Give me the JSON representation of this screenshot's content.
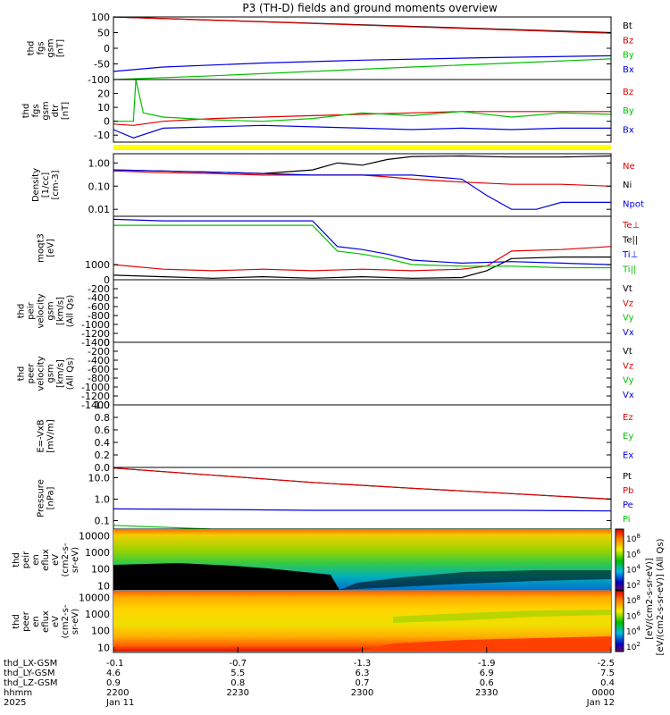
{
  "title": "P3 (TH-D) fields and ground moments overview",
  "chart_data": [
    {
      "type": "line",
      "ylabel": [
        "thd",
        "fgs",
        "gsm",
        "[nT]"
      ],
      "ylim": [
        -100,
        100
      ],
      "yticks": [
        "100",
        "50",
        "0",
        "-50",
        "-100"
      ],
      "ytick_values": [
        100,
        50,
        0,
        -50,
        -100
      ],
      "series": [
        {
          "name": "Bt",
          "color": "#000000",
          "x": [
            0,
            1
          ],
          "y": [
            118,
            50
          ]
        },
        {
          "name": "Bz",
          "color": "#e00000",
          "x": [
            0,
            1
          ],
          "y": [
            116,
            48
          ]
        },
        {
          "name": "By",
          "color": "#00c000",
          "x": [
            0,
            0.2,
            0.4,
            0.6,
            0.8,
            1
          ],
          "y": [
            -102,
            -88,
            -74,
            -60,
            -47,
            -34
          ]
        },
        {
          "name": "Bx",
          "color": "#0000e0",
          "x": [
            0,
            0.1,
            0.3,
            0.5,
            0.75,
            1
          ],
          "y": [
            -74,
            -60,
            -47,
            -38,
            -30,
            -24
          ]
        }
      ]
    },
    {
      "type": "line",
      "ylabel": [
        "thd",
        "fgs",
        "gsm",
        "dtr",
        "[nT]"
      ],
      "ylim": [
        -15,
        30
      ],
      "yticks": [
        "20",
        "10",
        "0",
        "-10"
      ],
      "ytick_values": [
        20,
        10,
        0,
        -10
      ],
      "series": [
        {
          "name": "Bz",
          "color": "#e00000",
          "x": [
            0,
            0.04,
            0.1,
            0.2,
            0.3,
            0.4,
            0.5,
            0.6,
            0.7,
            0.8,
            0.9,
            1
          ],
          "y": [
            -2,
            -3,
            0,
            2,
            3,
            4,
            5,
            6,
            7,
            7,
            7,
            7
          ]
        },
        {
          "name": "By",
          "color": "#00c000",
          "x": [
            0,
            0.04,
            0.045,
            0.06,
            0.1,
            0.2,
            0.3,
            0.4,
            0.5,
            0.6,
            0.7,
            0.8,
            0.9,
            1
          ],
          "y": [
            0,
            0,
            30,
            6,
            3,
            1,
            0,
            2,
            6,
            4,
            7,
            3,
            6,
            5
          ]
        },
        {
          "name": "Bx",
          "color": "#0000e0",
          "x": [
            0,
            0.04,
            0.1,
            0.2,
            0.3,
            0.4,
            0.5,
            0.6,
            0.7,
            0.8,
            0.9,
            1
          ],
          "y": [
            -6,
            -12,
            -5,
            -4,
            -3,
            -4,
            -5,
            -6,
            -5,
            -6,
            -5,
            -5
          ]
        }
      ]
    },
    {
      "type": "line",
      "yscale": "log",
      "ylabel": [
        "Density",
        "[1/cc]",
        "[cm-3]"
      ],
      "ylim": [
        0.005,
        2.5
      ],
      "yticks": [
        "1.00",
        "0.10",
        "0.01"
      ],
      "ytick_values": [
        1,
        0.1,
        0.01
      ],
      "series": [
        {
          "name": "Ne",
          "color": "#e00000",
          "x": [
            0,
            0.1,
            0.2,
            0.3,
            0.4,
            0.45,
            0.5,
            0.55,
            0.6,
            0.7,
            0.8,
            0.9,
            1
          ],
          "y": [
            0.45,
            0.38,
            0.35,
            0.3,
            0.3,
            0.3,
            0.3,
            0.25,
            0.2,
            0.15,
            0.12,
            0.12,
            0.1
          ]
        },
        {
          "name": "Ni",
          "color": "#000000",
          "x": [
            0,
            0.1,
            0.2,
            0.3,
            0.4,
            0.45,
            0.5,
            0.55,
            0.6,
            0.7,
            0.8,
            0.9,
            1
          ],
          "y": [
            0.5,
            0.45,
            0.4,
            0.35,
            0.5,
            1.0,
            0.8,
            1.4,
            1.9,
            2.0,
            1.8,
            1.8,
            2.0
          ]
        },
        {
          "name": "Npot",
          "color": "#0000e0",
          "x": [
            0,
            0.1,
            0.2,
            0.3,
            0.4,
            0.5,
            0.6,
            0.7,
            0.75,
            0.8,
            0.85,
            0.9,
            0.95,
            1
          ],
          "y": [
            0.5,
            0.45,
            0.4,
            0.35,
            0.3,
            0.3,
            0.3,
            0.2,
            0.04,
            0.01,
            0.01,
            0.02,
            0.02,
            0.02
          ]
        }
      ]
    },
    {
      "type": "line",
      "ylabel": [
        "moqt3",
        "[eV]"
      ],
      "ylim": [
        0,
        4200
      ],
      "yticks": [
        "1000"
      ],
      "ytick_values": [
        1000
      ],
      "series": [
        {
          "name": "Te⊥",
          "color": "#e00000",
          "x": [
            0,
            0.1,
            0.2,
            0.3,
            0.4,
            0.5,
            0.6,
            0.7,
            0.75,
            0.8,
            0.9,
            1
          ],
          "y": [
            1000,
            700,
            600,
            700,
            600,
            700,
            600,
            700,
            900,
            1900,
            2000,
            2200
          ]
        },
        {
          "name": "Te||",
          "color": "#000000",
          "x": [
            0,
            0.1,
            0.2,
            0.3,
            0.4,
            0.5,
            0.6,
            0.7,
            0.75,
            0.8,
            0.9,
            1
          ],
          "y": [
            300,
            200,
            100,
            200,
            100,
            200,
            100,
            150,
            600,
            1400,
            1500,
            1500
          ]
        },
        {
          "name": "Ti⊥",
          "color": "#0000e0",
          "x": [
            0,
            0.1,
            0.2,
            0.3,
            0.4,
            0.45,
            0.5,
            0.55,
            0.6,
            0.7,
            0.8,
            0.9,
            1
          ],
          "y": [
            4000,
            3900,
            3900,
            3900,
            3900,
            2200,
            2000,
            1700,
            1300,
            1100,
            1200,
            1100,
            1000
          ]
        },
        {
          "name": "Ti||",
          "color": "#00c000",
          "x": [
            0,
            0.1,
            0.2,
            0.3,
            0.4,
            0.45,
            0.5,
            0.55,
            0.6,
            0.7,
            0.8,
            0.9,
            1
          ],
          "y": [
            3600,
            3600,
            3600,
            3600,
            3600,
            1900,
            1700,
            1400,
            1000,
            900,
            900,
            800,
            800
          ]
        }
      ]
    },
    {
      "type": "line",
      "ylabel": [
        "thd",
        "peir",
        "velocity",
        "gsm",
        "[km/s]",
        "(All Qs)"
      ],
      "ylim": [
        -1400,
        0
      ],
      "yticks": [
        "0",
        "-200",
        "-400",
        "-600",
        "-800",
        "-1000",
        "-1200",
        "-1400"
      ],
      "ytick_values": [
        0,
        -200,
        -400,
        -600,
        -800,
        -1000,
        -1200,
        -1400
      ],
      "series": [
        {
          "name": "Vt",
          "color": "#000000",
          "x": [],
          "y": []
        },
        {
          "name": "Vz",
          "color": "#e00000",
          "x": [],
          "y": []
        },
        {
          "name": "Vy",
          "color": "#00c000",
          "x": [],
          "y": []
        },
        {
          "name": "Vx",
          "color": "#0000e0",
          "x": [],
          "y": []
        }
      ]
    },
    {
      "type": "line",
      "ylabel": [
        "thd",
        "peer",
        "velocity",
        "gsm",
        "[km/s]",
        "(All Qs)"
      ],
      "ylim": [
        -1400,
        0
      ],
      "yticks": [
        "0",
        "-200",
        "-400",
        "-600",
        "-800",
        "-1000",
        "-1200",
        "-1400"
      ],
      "ytick_values": [
        0,
        -200,
        -400,
        -600,
        -800,
        -1000,
        -1200,
        -1400
      ],
      "series": [
        {
          "name": "Vt",
          "color": "#000000",
          "x": [],
          "y": []
        },
        {
          "name": "Vz",
          "color": "#e00000",
          "x": [],
          "y": []
        },
        {
          "name": "Vy",
          "color": "#00c000",
          "x": [],
          "y": []
        },
        {
          "name": "Vx",
          "color": "#0000e0",
          "x": [],
          "y": []
        }
      ]
    },
    {
      "type": "line",
      "ylabel": [
        "E=-VxB",
        "[mV/m]"
      ],
      "ylim": [
        0,
        1
      ],
      "yticks": [
        "1.0",
        "0.8",
        "0.6",
        "0.4",
        "0.2",
        "0.0"
      ],
      "ytick_values": [
        1,
        0.8,
        0.6,
        0.4,
        0.2,
        0
      ],
      "series": [
        {
          "name": "Ez",
          "color": "#e00000",
          "x": [],
          "y": []
        },
        {
          "name": "Ey",
          "color": "#00c000",
          "x": [],
          "y": []
        },
        {
          "name": "Ex",
          "color": "#0000e0",
          "x": [],
          "y": []
        }
      ]
    },
    {
      "type": "line",
      "yscale": "log",
      "ylabel": [
        "Pressure",
        "[nPa]"
      ],
      "ylim": [
        0.04,
        30
      ],
      "yticks": [
        "10.0",
        "1.0",
        "0.1"
      ],
      "ytick_values": [
        10,
        1,
        0.1
      ],
      "series": [
        {
          "name": "Pt",
          "color": "#000000",
          "x": [
            0,
            0.2,
            0.4,
            0.6,
            0.8,
            1
          ],
          "y": [
            28,
            13,
            6,
            3.2,
            1.8,
            1.0
          ]
        },
        {
          "name": "Pb",
          "color": "#e00000",
          "x": [
            0,
            0.2,
            0.4,
            0.6,
            0.8,
            1
          ],
          "y": [
            28,
            13,
            6,
            3.2,
            1.8,
            1.0
          ]
        },
        {
          "name": "Pe",
          "color": "#0000e0",
          "x": [
            0,
            0.2,
            0.4,
            0.6,
            0.8,
            1
          ],
          "y": [
            0.35,
            0.33,
            0.3,
            0.3,
            0.3,
            0.28
          ]
        },
        {
          "name": "Pi",
          "color": "#00c000",
          "x": [
            0,
            0.2,
            0.4,
            0.6,
            0.8,
            1
          ],
          "y": [
            0.06,
            0.04,
            0.035,
            0.03,
            0.03,
            0.03
          ]
        }
      ]
    },
    {
      "type": "heatmap",
      "ylabel": [
        "thd",
        "peir",
        "en",
        "eflux",
        "eV",
        "(cm2-s-",
        "sr-eV)"
      ],
      "yscale": "log",
      "ylim": [
        5,
        25000
      ],
      "yticks": [
        "10000",
        "1000",
        "100",
        "10"
      ],
      "ytick_values": [
        10000,
        1000,
        100,
        10
      ],
      "colorbar_ticks": [
        "10^8",
        "10^6",
        "10^4",
        "10^2"
      ]
    },
    {
      "type": "heatmap",
      "ylabel": [
        "thd",
        "peer",
        "en",
        "eflux",
        "eV",
        "(cm2-s-",
        "sr-eV)"
      ],
      "yscale": "log",
      "ylim": [
        5,
        25000
      ],
      "yticks": [
        "10000",
        "1000",
        "100",
        "10"
      ],
      "ytick_values": [
        10000,
        1000,
        100,
        10
      ],
      "colorbar_ticks": [
        "10^8",
        "10^6",
        "10^4",
        "10^2"
      ]
    }
  ],
  "colorbar_label": "[eV/(cm2-s-sr-eV)]  (All Qs)",
  "colorbar_label2": "[eV/(cm2-s-sr-eV)]",
  "x_axis": {
    "tick_positions": [
      0,
      0.25,
      0.5,
      0.75,
      1
    ],
    "row_labels": [
      "thd_LX-GSM",
      "thd_LY-GSM",
      "thd_LZ-GSM",
      "hhmm",
      "2025"
    ],
    "rows": [
      [
        "-0.1",
        "-0.7",
        "-1.3",
        "-1.9",
        "-2.5"
      ],
      [
        "4.6",
        "5.5",
        "6.3",
        "6.9",
        "7.5"
      ],
      [
        "0.9",
        "0.8",
        "0.7",
        "0.6",
        "0.4"
      ],
      [
        "2200",
        "2230",
        "2300",
        "2330",
        "0000"
      ],
      [
        "Jan 11",
        "",
        "",
        "",
        "Jan 12"
      ]
    ]
  }
}
